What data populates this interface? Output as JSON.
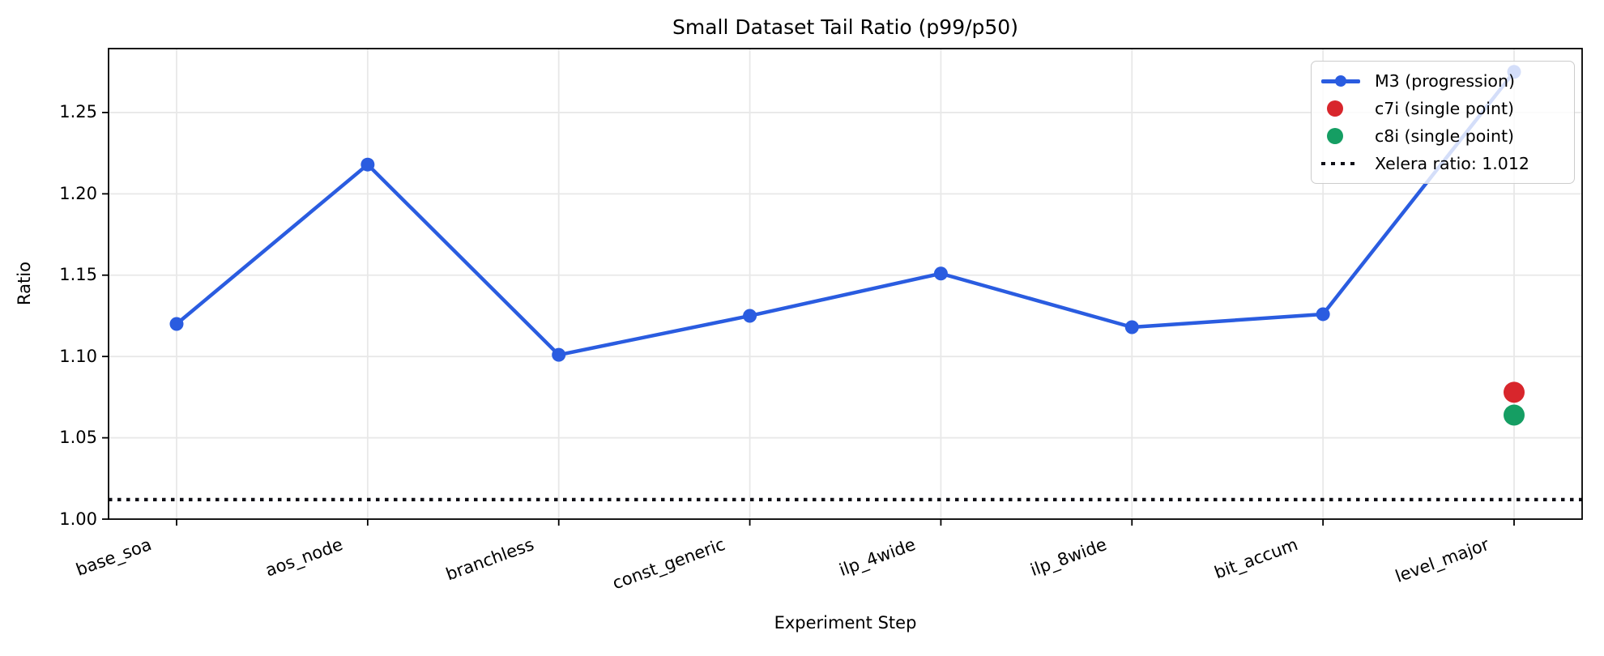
{
  "chart_data": {
    "type": "line",
    "title": "Small Dataset Tail Ratio (p99/p50)",
    "xlabel": "Experiment Step",
    "ylabel": "Ratio",
    "categories": [
      "base_soa",
      "aos_node",
      "branchless",
      "const_generic",
      "ilp_4wide",
      "ilp_8wide",
      "bit_accum",
      "level_major"
    ],
    "ylim": [
      1.0,
      1.2893
    ],
    "yticks": [
      1.0,
      1.05,
      1.1,
      1.15,
      1.2,
      1.25
    ],
    "ytick_labels": [
      "1.00",
      "1.05",
      "1.10",
      "1.15",
      "1.20",
      "1.25"
    ],
    "grid": true,
    "xtick_rotation_deg": 20,
    "series": [
      {
        "name": "M3 (progression)",
        "type": "line",
        "color": "#2a5ce0",
        "marker": "circle",
        "values": [
          1.12,
          1.218,
          1.101,
          1.125,
          1.151,
          1.118,
          1.126,
          1.275
        ]
      },
      {
        "name": "c7i (single point)",
        "type": "scatter",
        "color": "#d8262c",
        "category": "level_major",
        "value": 1.078
      },
      {
        "name": "c8i (single point)",
        "type": "scatter",
        "color": "#159e63",
        "category": "level_major",
        "value": 1.064
      }
    ],
    "reference_line": {
      "label": "Xelera ratio: 1.012",
      "value": 1.012,
      "color": "#111118",
      "style": "dotted"
    },
    "legend": {
      "position": "upper right",
      "entries": [
        {
          "label": "M3 (progression)",
          "marker": "line-dot",
          "color": "#2a5ce0"
        },
        {
          "label": "c7i (single point)",
          "marker": "dot",
          "color": "#d8262c"
        },
        {
          "label": "c8i (single point)",
          "marker": "dot",
          "color": "#159e63"
        },
        {
          "label": "Xelera ratio: 1.012",
          "marker": "dotted-line",
          "color": "#111118"
        }
      ]
    },
    "colors": {
      "background": "#ffffff",
      "grid": "#e8e8e8",
      "axis": "#000000"
    }
  }
}
